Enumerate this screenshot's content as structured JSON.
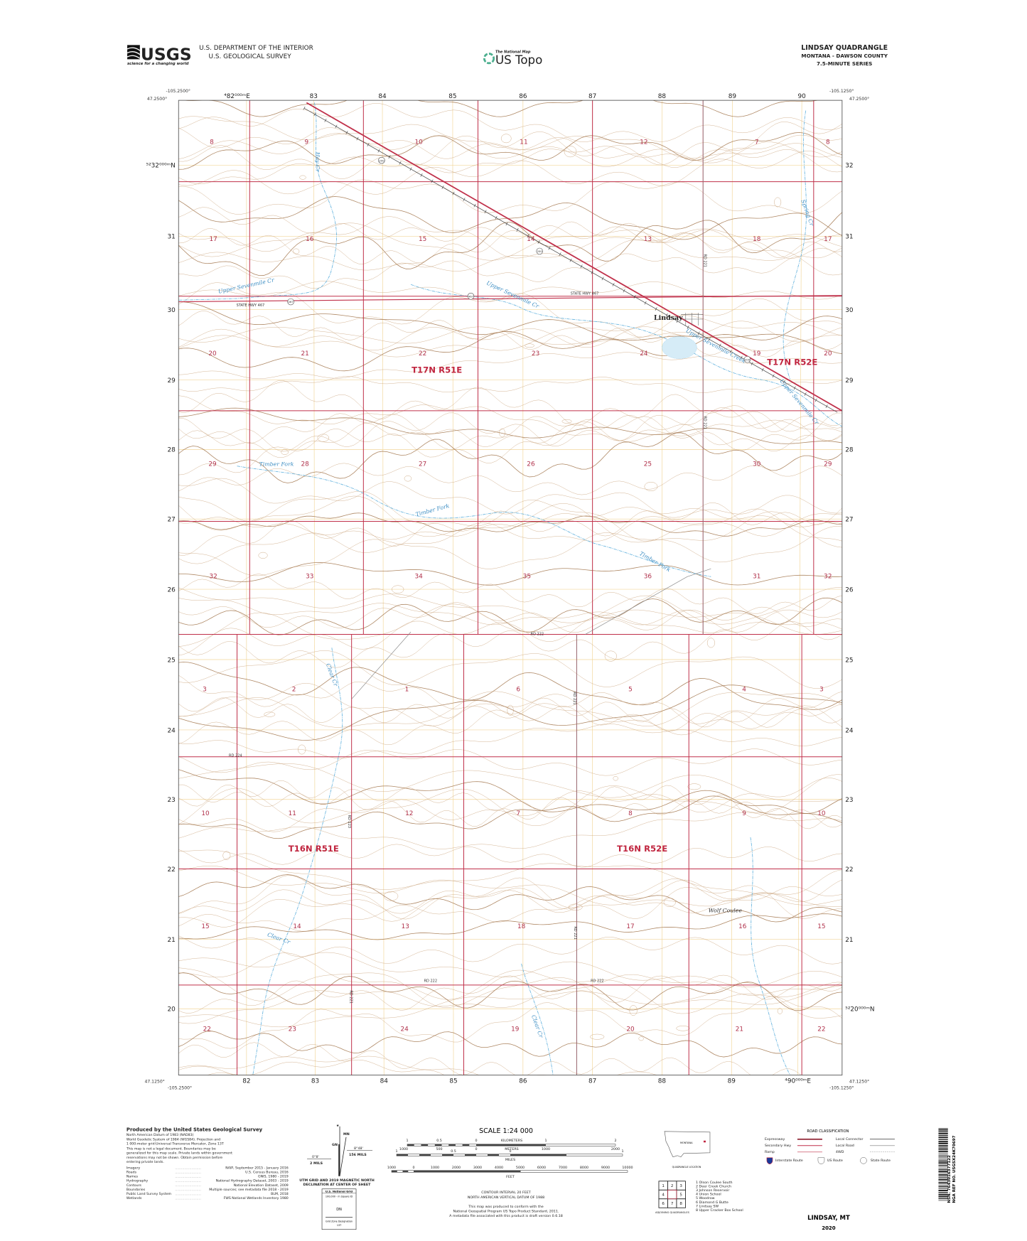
{
  "header": {
    "agency_logo": "USGS",
    "agency_tagline": "science for a changing world",
    "department": "U.S. DEPARTMENT OF THE INTERIOR",
    "survey": "U.S. GEOLOGICAL SURVEY",
    "national_map_label": "The National Map",
    "product": "US Topo",
    "quad_title": "LINDSAY QUADRANGLE",
    "state_county": "MONTANA - DAWSON COUNTY",
    "series": "7.5-MINUTE SERIES"
  },
  "coordinates": {
    "top_left_lon": "-105.2500°",
    "top_left_lat": "47.2500°",
    "top_right_lon": "-105.1250°",
    "top_right_lat": "47.2500°",
    "bottom_left_lat": "47.1250°",
    "bottom_left_lon": "-105.2500°",
    "bottom_right_lon": "-105.1250°",
    "bottom_right_lat": "47.1250°",
    "top_eastings": [
      "⁴82⁰⁰⁰ᵐE",
      "83",
      "84",
      "85",
      "86",
      "87",
      "88",
      "89",
      "90"
    ],
    "bottom_eastings": [
      "82",
      "83",
      "84",
      "85",
      "86",
      "87",
      "88",
      "89",
      "⁴90⁰⁰⁰ᵐE"
    ],
    "left_northings": [
      "⁵²32⁰⁰⁰ᵐN",
      "31",
      "30",
      "29",
      "28",
      "27",
      "26",
      "25",
      "24",
      "23",
      "22",
      "21",
      "20"
    ],
    "right_northings": [
      "32",
      "31",
      "30",
      "29",
      "28",
      "27",
      "26",
      "25",
      "24",
      "23",
      "22",
      "21",
      "⁵²20⁰⁰⁰ᵐN"
    ]
  },
  "map": {
    "section_numbers": [
      [
        "8",
        "9",
        "10",
        "11",
        "12",
        "7",
        "8"
      ],
      [
        "17",
        "16",
        "15",
        "14",
        "13",
        "18",
        "17"
      ],
      [
        "20",
        "21",
        "22",
        "23",
        "24",
        "19",
        "20"
      ],
      [
        "29",
        "28",
        "27",
        "26",
        "25",
        "30",
        "29"
      ],
      [
        "32",
        "33",
        "34",
        "35",
        "36",
        "31",
        "32"
      ],
      [
        "3",
        "2",
        "1",
        "6",
        "5",
        "4",
        "3"
      ],
      [
        "10",
        "11",
        "12",
        "7",
        "8",
        "9",
        "10"
      ],
      [
        "15",
        "14",
        "13",
        "18",
        "17",
        "16",
        "15"
      ],
      [
        "22",
        "23",
        "24",
        "19",
        "20",
        "21",
        "22"
      ]
    ],
    "townships": [
      "T17N R51E",
      "T17N R52E",
      "T16N R51E",
      "T16N R52E"
    ],
    "places": [
      "Lindsay",
      "Wolf Coulee"
    ],
    "water_names": [
      "Hay Cr",
      "Upper Sevenmile Cr",
      "Upper Sevenmile Cr",
      "Upper Sevenmile Creek",
      "Upper Sevenmile Cr",
      "Spring Cr",
      "Timber Fork",
      "Timber Fork",
      "Timber Fork",
      "Clear Cr",
      "Clear Cr",
      "Clear Cr"
    ],
    "road_labels": [
      "STATE HWY 467",
      "STATE HWY 467",
      "RD 222",
      "RD 224",
      "RD 222",
      "RD 222",
      "RD 221",
      "RD 221",
      "RD 221",
      "RD 223",
      "RD 221",
      "RD 221"
    ],
    "route_shields": [
      "200",
      "200",
      "200",
      "467",
      "467"
    ],
    "colors": {
      "section_line": "#c0304a",
      "contour": "#c9a27a",
      "index_contour": "#a57a52",
      "water": "#6fb8e0",
      "utm_grid": "#f2d69a",
      "highway": "#c0304a"
    }
  },
  "footer": {
    "producer": "Produced by the United States Geological Survey",
    "datum_lines": [
      "North American Datum of 1983 (NAD83)",
      "World Geodetic System of 1984 (WGS84). Projection and",
      "1 000-meter grid:Universal Transverse Mercator, Zone 13T"
    ],
    "disclaimer_lines": [
      "This map is not a legal document. Boundaries may be",
      "generalized for this map scale. Private lands within government",
      "reservations may not be shown. Obtain permission before",
      "entering private lands."
    ],
    "sources": [
      {
        "label": "Imagery",
        "value": "NAIP, September 2015 - January 2016"
      },
      {
        "label": "Roads",
        "value": "U.S. Census Bureau, 2016"
      },
      {
        "label": "Names",
        "value": "GNIS, 1980 - 2019"
      },
      {
        "label": "Hydrography",
        "value": "National Hydrography Dataset, 2003 - 2019"
      },
      {
        "label": "Contours",
        "value": "National Elevation Dataset, 2009"
      },
      {
        "label": "Boundaries",
        "value": "Multiple sources; see metadata file 2018 - 2019"
      },
      {
        "label": "Public Land Survey System",
        "value": "BLM, 2018"
      },
      {
        "label": "Wetlands",
        "value": "FWS National Wetlands Inventory 1980"
      }
    ],
    "declination": {
      "mn": "MN",
      "gn": "GN",
      "left_angle": "0°8'",
      "left_mils": "2 MILS",
      "right_angle": "8°48'",
      "right_mils": "156 MILS",
      "caption1": "UTM GRID AND 2019 MAGNETIC NORTH",
      "caption2": "DECLINATION AT CENTER OF SHEET"
    },
    "national_grid": {
      "title": "U.S. National Grid",
      "sub": "100,000 - m Square ID",
      "id": "DN",
      "zone_label": "Grid Zone Designation",
      "zone": "13T"
    },
    "scale": {
      "title": "SCALE 1:24 000",
      "km_ticks": [
        "1",
        "0.5",
        "0",
        "1",
        "2"
      ],
      "km_label": "KILOMETERS",
      "m_ticks": [
        "1000",
        "500",
        "0",
        "1000",
        "2000"
      ],
      "m_label": "METERS",
      "mi_ticks": [
        "1",
        "0.5",
        "0",
        "1"
      ],
      "mi_label": "MILES",
      "ft_ticks": [
        "1000",
        "0",
        "1000",
        "2000",
        "3000",
        "4000",
        "5000",
        "6000",
        "7000",
        "8000",
        "9000",
        "10000"
      ],
      "ft_label": "FEET"
    },
    "contour_interval": "CONTOUR INTERVAL 20 FEET",
    "vertical_datum": "NORTH AMERICAN VERTICAL DATUM OF 1988",
    "standard_lines": [
      "This map was produced to conform with the",
      "National Geospatial Program US Topo Product Standard, 2011.",
      "A metadata file associated with this product is draft version 0.6.18"
    ],
    "location": {
      "state": "MONTANA",
      "caption": "QUADRANGLE LOCATION"
    },
    "adjoining": {
      "caption": "ADJOINING QUADRANGLES",
      "cells": [
        "1",
        "2",
        "3",
        "4",
        "5",
        "6",
        "7",
        "8"
      ],
      "names": [
        "1 Olson Coulee South",
        "2 Deer Creek Church",
        "3 Johnson Reservoir",
        "4 Union School",
        "5 Woodrow",
        "6 Diamond G Butte",
        "7 Lindsay SW",
        "8 Upper Cracker Box School"
      ]
    },
    "road_classification": {
      "title": "ROAD CLASSIFICATION",
      "left": [
        "Expressway",
        "Secondary Hwy",
        "Ramp"
      ],
      "right": [
        "Local Connector",
        "Local Road",
        "4WD"
      ],
      "routes": [
        "Interstate Route",
        "US Route",
        "State Route"
      ]
    },
    "sheet_name": "LINDSAY, MT",
    "year": "2020",
    "barcode_nsn": "NSN. 7643016377122",
    "barcode_nga": "NGA REF NO. USGSX24K70697"
  }
}
